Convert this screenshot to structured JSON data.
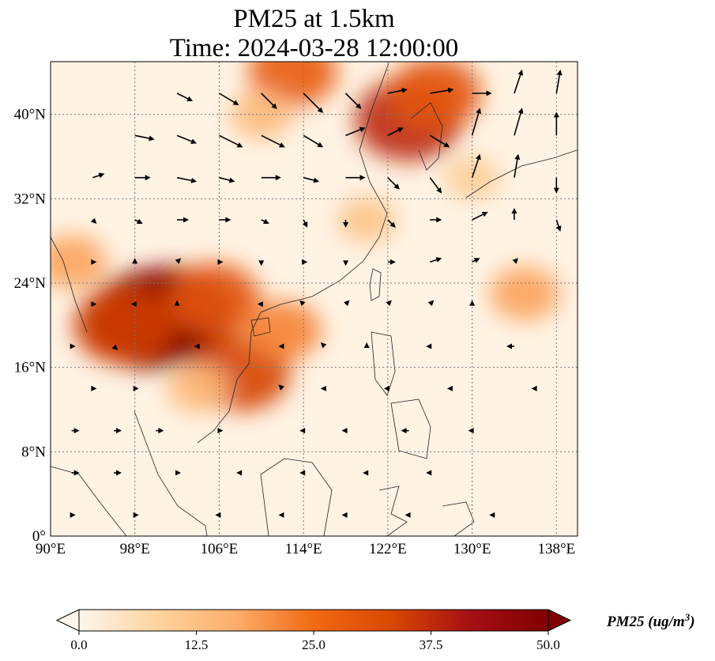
{
  "title": {
    "line1": "PM25 at 1.5km",
    "line2": "Time: 2024-03-28 12:00:00"
  },
  "map": {
    "lon_range": [
      90,
      140
    ],
    "lat_range": [
      0,
      45
    ],
    "lon_ticks": [
      {
        "value": 90,
        "label": "90°E"
      },
      {
        "value": 98,
        "label": "98°E"
      },
      {
        "value": 106,
        "label": "106°E"
      },
      {
        "value": 114,
        "label": "114°E"
      },
      {
        "value": 122,
        "label": "122°E"
      },
      {
        "value": 130,
        "label": "130°E"
      },
      {
        "value": 138,
        "label": "138°E"
      }
    ],
    "lat_ticks": [
      {
        "value": 0,
        "label": "0°"
      },
      {
        "value": 8,
        "label": "8°N"
      },
      {
        "value": 16,
        "label": "16°N"
      },
      {
        "value": 24,
        "label": "24°N"
      },
      {
        "value": 32,
        "label": "32°N"
      },
      {
        "value": 40,
        "label": "40°N"
      }
    ],
    "gridlines": true,
    "pm25_hotspots": [
      {
        "lon": 99.5,
        "lat": 20.5,
        "value": 50
      },
      {
        "lon": 101.5,
        "lat": 21.0,
        "value": 48
      },
      {
        "lon": 97.0,
        "lat": 20.0,
        "value": 35
      },
      {
        "lon": 105.5,
        "lat": 22.5,
        "value": 30
      },
      {
        "lon": 108.0,
        "lat": 15.5,
        "value": 34
      },
      {
        "lon": 112.0,
        "lat": 19.5,
        "value": 22
      },
      {
        "lon": 124.0,
        "lat": 39.5,
        "value": 38
      },
      {
        "lon": 126.5,
        "lat": 42.0,
        "value": 30
      },
      {
        "lon": 113.0,
        "lat": 44.0,
        "value": 28
      },
      {
        "lon": 110.0,
        "lat": 40.0,
        "value": 14
      },
      {
        "lon": 135.0,
        "lat": 23.0,
        "value": 18
      },
      {
        "lon": 92.0,
        "lat": 26.0,
        "value": 18
      },
      {
        "lon": 104.0,
        "lat": 14.0,
        "value": 14
      },
      {
        "lon": 120.0,
        "lat": 30.0,
        "value": 12
      },
      {
        "lon": 130.0,
        "lat": 34.0,
        "value": 10
      }
    ],
    "wind": [
      {
        "lon": 102,
        "lat": 42,
        "u": 4,
        "v": -2
      },
      {
        "lon": 106,
        "lat": 42,
        "u": 5,
        "v": -3
      },
      {
        "lon": 110,
        "lat": 42,
        "u": 4,
        "v": -4
      },
      {
        "lon": 114,
        "lat": 42,
        "u": 5,
        "v": -5
      },
      {
        "lon": 118,
        "lat": 42,
        "u": 4,
        "v": -4
      },
      {
        "lon": 122,
        "lat": 42,
        "u": 5,
        "v": 1
      },
      {
        "lon": 126,
        "lat": 42,
        "u": 6,
        "v": 1
      },
      {
        "lon": 130,
        "lat": 42,
        "u": 5,
        "v": 0
      },
      {
        "lon": 134,
        "lat": 42,
        "u": 2,
        "v": 6
      },
      {
        "lon": 138,
        "lat": 42,
        "u": 1,
        "v": 6
      },
      {
        "lon": 98,
        "lat": 38,
        "u": 5,
        "v": -1
      },
      {
        "lon": 102,
        "lat": 38,
        "u": 5,
        "v": -2
      },
      {
        "lon": 106,
        "lat": 38,
        "u": 6,
        "v": -3
      },
      {
        "lon": 110,
        "lat": 38,
        "u": 6,
        "v": -3
      },
      {
        "lon": 114,
        "lat": 38,
        "u": 5,
        "v": -3
      },
      {
        "lon": 118,
        "lat": 38,
        "u": 5,
        "v": 2
      },
      {
        "lon": 122,
        "lat": 38,
        "u": 4,
        "v": 2
      },
      {
        "lon": 126,
        "lat": 38,
        "u": 5,
        "v": -3
      },
      {
        "lon": 130,
        "lat": 38,
        "u": 2,
        "v": 7
      },
      {
        "lon": 134,
        "lat": 38,
        "u": 2,
        "v": 7
      },
      {
        "lon": 138,
        "lat": 38,
        "u": 0,
        "v": 6
      },
      {
        "lon": 94,
        "lat": 34,
        "u": 3,
        "v": 1
      },
      {
        "lon": 98,
        "lat": 34,
        "u": 4,
        "v": 0
      },
      {
        "lon": 102,
        "lat": 34,
        "u": 5,
        "v": -1
      },
      {
        "lon": 106,
        "lat": 34,
        "u": 4,
        "v": -1
      },
      {
        "lon": 110,
        "lat": 34,
        "u": 5,
        "v": 0
      },
      {
        "lon": 114,
        "lat": 34,
        "u": 4,
        "v": -1
      },
      {
        "lon": 118,
        "lat": 34,
        "u": 5,
        "v": 0
      },
      {
        "lon": 122,
        "lat": 34,
        "u": 3,
        "v": -3
      },
      {
        "lon": 126,
        "lat": 34,
        "u": 3,
        "v": -4
      },
      {
        "lon": 130,
        "lat": 34,
        "u": 2,
        "v": 6
      },
      {
        "lon": 134,
        "lat": 34,
        "u": 1,
        "v": 6
      },
      {
        "lon": 138,
        "lat": 34,
        "u": 0,
        "v": -4
      },
      {
        "lon": 94,
        "lat": 30,
        "u": 1,
        "v": -1
      },
      {
        "lon": 98,
        "lat": 30,
        "u": 2,
        "v": -1
      },
      {
        "lon": 102,
        "lat": 30,
        "u": 3,
        "v": 0
      },
      {
        "lon": 106,
        "lat": 30,
        "u": 3,
        "v": 0
      },
      {
        "lon": 110,
        "lat": 30,
        "u": 2,
        "v": -1
      },
      {
        "lon": 114,
        "lat": 30,
        "u": 1,
        "v": -2
      },
      {
        "lon": 118,
        "lat": 30,
        "u": 0,
        "v": -2
      },
      {
        "lon": 122,
        "lat": 30,
        "u": 2,
        "v": -2
      },
      {
        "lon": 126,
        "lat": 30,
        "u": 3,
        "v": 0
      },
      {
        "lon": 130,
        "lat": 30,
        "u": 4,
        "v": 2
      },
      {
        "lon": 134,
        "lat": 30,
        "u": 0,
        "v": 3
      },
      {
        "lon": 138,
        "lat": 30,
        "u": 1,
        "v": -3
      },
      {
        "lon": 94,
        "lat": 26,
        "u": 1,
        "v": 0
      },
      {
        "lon": 98,
        "lat": 26,
        "u": 0,
        "v": 1
      },
      {
        "lon": 102,
        "lat": 26,
        "u": 1,
        "v": 1
      },
      {
        "lon": 106,
        "lat": 26,
        "u": 1,
        "v": 0
      },
      {
        "lon": 110,
        "lat": 26,
        "u": 0,
        "v": -1
      },
      {
        "lon": 114,
        "lat": 26,
        "u": 1,
        "v": 0
      },
      {
        "lon": 118,
        "lat": 26,
        "u": 0,
        "v": -1
      },
      {
        "lon": 122,
        "lat": 26,
        "u": 2,
        "v": 0
      },
      {
        "lon": 126,
        "lat": 26,
        "u": 3,
        "v": 1
      },
      {
        "lon": 130,
        "lat": 26,
        "u": 2,
        "v": 1
      },
      {
        "lon": 134,
        "lat": 26,
        "u": 1,
        "v": 1
      },
      {
        "lon": 94,
        "lat": 22,
        "u": 1,
        "v": 0
      },
      {
        "lon": 98,
        "lat": 22,
        "u": -1,
        "v": 0
      },
      {
        "lon": 102,
        "lat": 22,
        "u": 0,
        "v": 1
      },
      {
        "lon": 110,
        "lat": 22,
        "u": -1,
        "v": 0
      },
      {
        "lon": 114,
        "lat": 22,
        "u": -1,
        "v": 1
      },
      {
        "lon": 118,
        "lat": 22,
        "u": 1,
        "v": 1
      },
      {
        "lon": 122,
        "lat": 22,
        "u": 1,
        "v": 1
      },
      {
        "lon": 126,
        "lat": 22,
        "u": 1,
        "v": 1
      },
      {
        "lon": 130,
        "lat": 22,
        "u": 0,
        "v": 1
      },
      {
        "lon": 92,
        "lat": 18,
        "u": 1,
        "v": 0
      },
      {
        "lon": 96,
        "lat": 18,
        "u": 1,
        "v": -1
      },
      {
        "lon": 104,
        "lat": 18,
        "u": -1,
        "v": 0
      },
      {
        "lon": 112,
        "lat": 18,
        "u": -1,
        "v": 0
      },
      {
        "lon": 116,
        "lat": 18,
        "u": -1,
        "v": 1
      },
      {
        "lon": 120,
        "lat": 18,
        "u": 0,
        "v": 1
      },
      {
        "lon": 126,
        "lat": 18,
        "u": -1,
        "v": 0
      },
      {
        "lon": 134,
        "lat": 18,
        "u": -2,
        "v": 0
      },
      {
        "lon": 94,
        "lat": 14,
        "u": 1,
        "v": 0
      },
      {
        "lon": 98,
        "lat": 14,
        "u": 1,
        "v": 0
      },
      {
        "lon": 112,
        "lat": 14,
        "u": -1,
        "v": 1
      },
      {
        "lon": 116,
        "lat": 14,
        "u": -1,
        "v": 0
      },
      {
        "lon": 122,
        "lat": 14,
        "u": -1,
        "v": 0
      },
      {
        "lon": 128,
        "lat": 14,
        "u": -1,
        "v": 0
      },
      {
        "lon": 136,
        "lat": 14,
        "u": -1,
        "v": 0
      },
      {
        "lon": 92,
        "lat": 10,
        "u": 2,
        "v": 0
      },
      {
        "lon": 96,
        "lat": 10,
        "u": 2,
        "v": 0
      },
      {
        "lon": 100,
        "lat": 10,
        "u": 2,
        "v": 0
      },
      {
        "lon": 106,
        "lat": 10,
        "u": 1,
        "v": 0
      },
      {
        "lon": 114,
        "lat": 10,
        "u": -1,
        "v": 0
      },
      {
        "lon": 118,
        "lat": 10,
        "u": -1,
        "v": 0
      },
      {
        "lon": 124,
        "lat": 10,
        "u": -2,
        "v": 0
      },
      {
        "lon": 130,
        "lat": 10,
        "u": -1,
        "v": 0
      },
      {
        "lon": 92,
        "lat": 6,
        "u": 2,
        "v": 0
      },
      {
        "lon": 96,
        "lat": 6,
        "u": 2,
        "v": 0
      },
      {
        "lon": 102,
        "lat": 6,
        "u": 1,
        "v": 0
      },
      {
        "lon": 108,
        "lat": 6,
        "u": -1,
        "v": 0
      },
      {
        "lon": 114,
        "lat": 6,
        "u": -1,
        "v": 0
      },
      {
        "lon": 120,
        "lat": 6,
        "u": -1,
        "v": 0
      },
      {
        "lon": 126,
        "lat": 6,
        "u": -1,
        "v": 0
      },
      {
        "lon": 92,
        "lat": 2,
        "u": 1,
        "v": 0
      },
      {
        "lon": 98,
        "lat": 2,
        "u": 1,
        "v": 0
      },
      {
        "lon": 106,
        "lat": 2,
        "u": -1,
        "v": 0
      },
      {
        "lon": 112,
        "lat": 2,
        "u": -1,
        "v": 0
      },
      {
        "lon": 118,
        "lat": 2,
        "u": -1,
        "v": 0
      },
      {
        "lon": 124,
        "lat": 2,
        "u": -1,
        "v": 0
      },
      {
        "lon": 132,
        "lat": 2,
        "u": -1,
        "v": 0
      }
    ]
  },
  "colorbar": {
    "min": 0,
    "max": 50,
    "colors": [
      "#fff5eb",
      "#fdd49e",
      "#fdae6b",
      "#f16913",
      "#d94801",
      "#a50f15",
      "#7f0000"
    ],
    "ticks": [
      {
        "value": 0,
        "label": "0.0"
      },
      {
        "value": 12.5,
        "label": "12.5"
      },
      {
        "value": 25,
        "label": "25.0"
      },
      {
        "value": 37.5,
        "label": "37.5"
      },
      {
        "value": 50,
        "label": "50.0"
      }
    ],
    "label": "PM25 (ug/m",
    "label_sup": "3",
    "label_close": ")"
  }
}
